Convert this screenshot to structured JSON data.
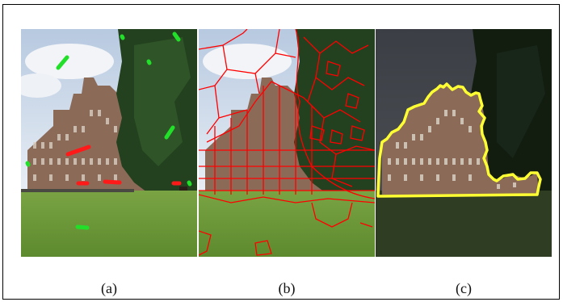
{
  "figure": {
    "panels": [
      {
        "id": "a",
        "caption": "(a)",
        "content": "photo-with-scribbles"
      },
      {
        "id": "b",
        "caption": "(b)",
        "content": "photo-with-superpixel-boundaries"
      },
      {
        "id": "c",
        "caption": "(c)",
        "content": "dimmed-photo-with-segmentation"
      }
    ]
  },
  "colors": {
    "foreground_scribble": "#ff1a1a",
    "background_scribble": "#22e02a",
    "superpixel_boundary": "#ff0000",
    "segmentation_outline": "#ffff33",
    "sky": "#c9d8ea",
    "grass": "#6f9a3c",
    "tree": "#1f3a1c",
    "building": "#8a6a58"
  }
}
